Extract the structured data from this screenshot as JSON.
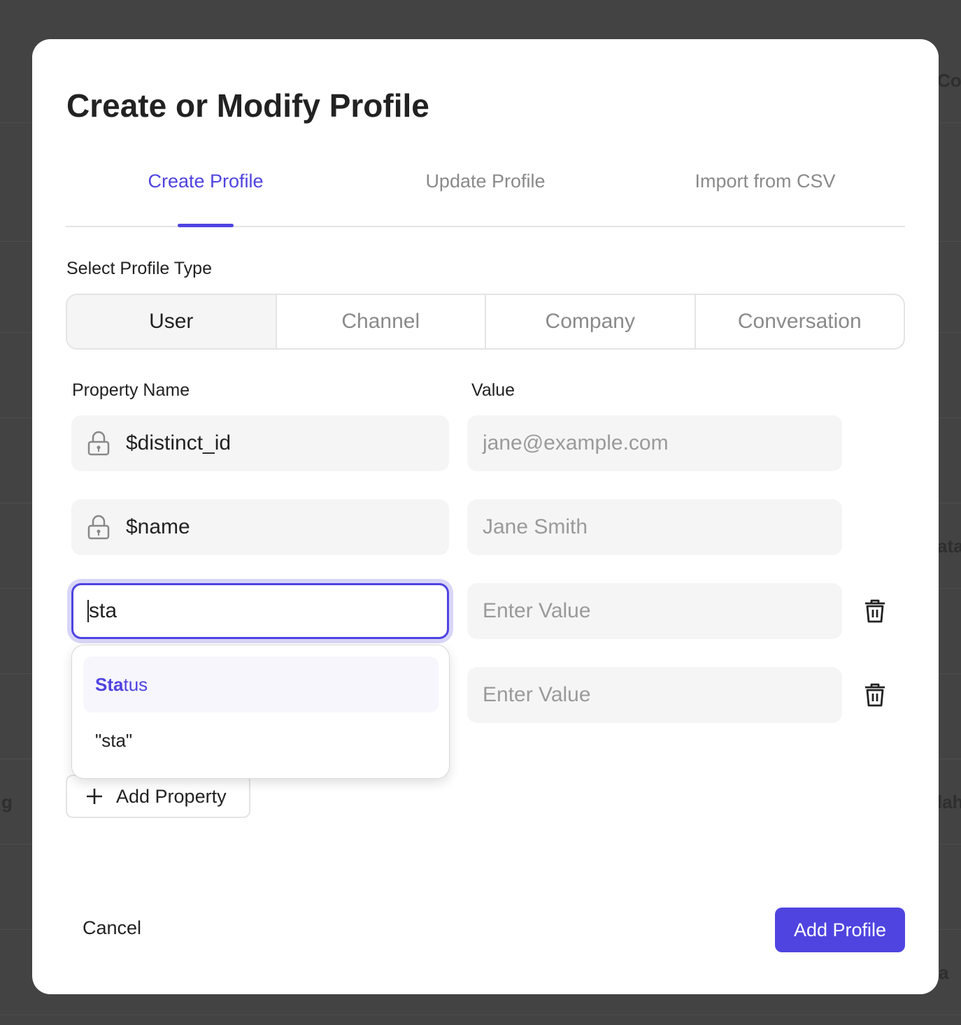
{
  "background": {
    "fragments": [
      "Col",
      "ata",
      "lah",
      "a",
      "g"
    ]
  },
  "modal": {
    "title": "Create or Modify Profile",
    "tabs": [
      {
        "label": "Create Profile",
        "active": true
      },
      {
        "label": "Update Profile"
      },
      {
        "label": "Import from CSV"
      }
    ],
    "profile_type_label": "Select Profile Type",
    "profile_types": [
      "User",
      "Channel",
      "Company",
      "Conversation"
    ],
    "selected_type": "User",
    "columns": {
      "name": "Property Name",
      "value": "Value"
    },
    "rows": [
      {
        "name": "$distinct_id",
        "locked": true,
        "value_placeholder": "jane@example.com"
      },
      {
        "name": "$name",
        "locked": true,
        "value_placeholder": "Jane Smith"
      },
      {
        "name": "sta",
        "focused": true,
        "value_placeholder": "Enter Value"
      },
      {
        "name": "",
        "value_placeholder": "Enter Value"
      }
    ],
    "suggestions": [
      {
        "match": "Sta",
        "rest": "tus"
      },
      {
        "label": "\"sta\""
      }
    ],
    "add_property": "Add Property",
    "cancel": "Cancel",
    "submit": "Add Profile",
    "accent": "#4f44e0"
  }
}
